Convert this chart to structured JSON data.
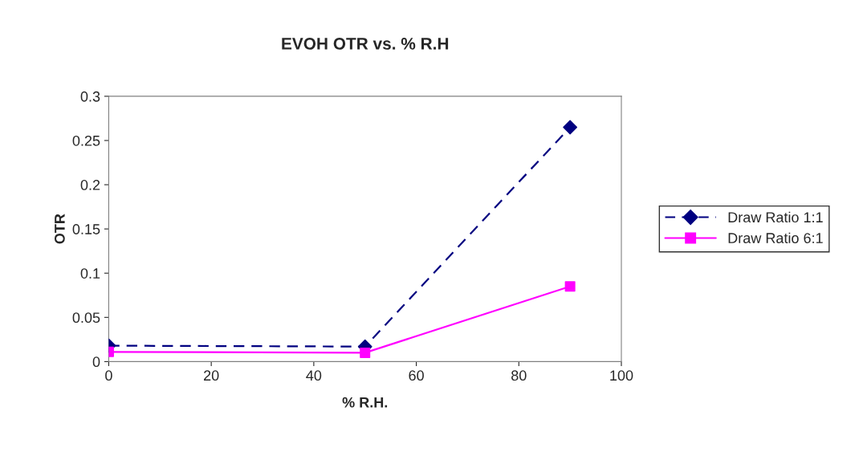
{
  "chart_data": {
    "type": "line",
    "title": "EVOH OTR vs. % R.H",
    "xlabel": "% R.H.",
    "ylabel": "OTR",
    "x": [
      0,
      50,
      90
    ],
    "series": [
      {
        "name": "Draw Ratio 1:1",
        "color": "#000080",
        "values": [
          0.018,
          0.017,
          0.265
        ],
        "marker": "diamond",
        "line_style": "dashed"
      },
      {
        "name": "Draw Ratio 6:1",
        "color": "#ff00ff",
        "values": [
          0.011,
          0.01,
          0.085
        ],
        "marker": "square",
        "line_style": "solid"
      }
    ],
    "xlim": [
      0,
      100
    ],
    "xticks": [
      0,
      20,
      40,
      60,
      80,
      100
    ],
    "ylim": [
      0,
      0.3
    ],
    "yticks": [
      0,
      0.05,
      0.1,
      0.15,
      0.2,
      0.25,
      0.3
    ],
    "grid": false,
    "legend": "right"
  }
}
